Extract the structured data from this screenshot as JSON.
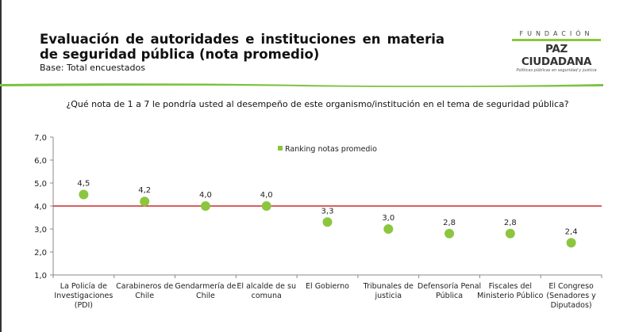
{
  "header": {
    "title": "Evaluación de autoridades e instituciones en materia de seguridad pública (nota promedio)",
    "base": "Base: Total encuestados"
  },
  "logo": {
    "top": "FUNDACIÓN",
    "name": "PAZ CIUDADANA",
    "tagline": "Políticas públicas en seguridad y justicia"
  },
  "question": "¿Qué nota de 1 a 7 le pondría usted al desempeño de este organismo/institución en el tema de seguridad pública?",
  "chart_data": {
    "type": "scatter",
    "title": "",
    "categories": [
      [
        "La Policía de",
        "Investigaciones",
        "(PDI)"
      ],
      [
        "Carabineros de",
        "Chile"
      ],
      [
        "Gendarmería de",
        "Chile"
      ],
      [
        "El alcalde de su",
        "comuna"
      ],
      [
        "El Gobierno"
      ],
      [
        "Tribunales de",
        "justicia"
      ],
      [
        "Defensoría Penal",
        "Pública"
      ],
      [
        "Fiscales del",
        "Ministerio Público"
      ],
      [
        "El Congreso",
        "(Senadores y",
        "Diputados)"
      ]
    ],
    "series": [
      {
        "name": "Ranking notas promedio",
        "values": [
          4.5,
          4.2,
          4.0,
          4.0,
          3.3,
          3.0,
          2.8,
          2.8,
          2.4
        ],
        "labels": [
          "4,5",
          "4,2",
          "4,0",
          "4,0",
          "3,3",
          "3,0",
          "2,8",
          "2,8",
          "2,4"
        ],
        "color": "#8cc63f"
      }
    ],
    "yticks": [
      "1,0",
      "2,0",
      "3,0",
      "4,0",
      "5,0",
      "6,0",
      "7,0"
    ],
    "ylim": [
      1,
      7
    ],
    "reference_line": {
      "value": 4.0,
      "color": "#c00000"
    },
    "legend": "top-center",
    "grid": false
  }
}
